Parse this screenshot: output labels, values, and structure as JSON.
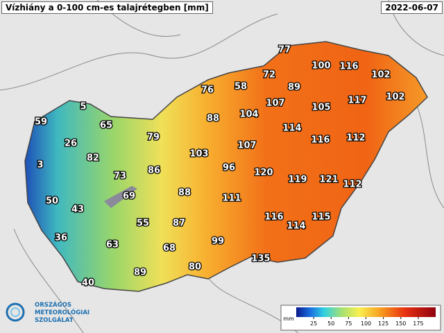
{
  "header": {
    "title": "Vízhiány a 0-100 cm-es talajrétegben [mm]",
    "date": "2022-06-07"
  },
  "stations": [
    77,
    100,
    116,
    102,
    72,
    89,
    76,
    58,
    102,
    117,
    105,
    107,
    104,
    88,
    5,
    65,
    59,
    79,
    114,
    116,
    112,
    26,
    103,
    107,
    82,
    3,
    96,
    73,
    86,
    120,
    119,
    121,
    112,
    88,
    69,
    111,
    50,
    43,
    116,
    115,
    114,
    87,
    55,
    36,
    99,
    63,
    68,
    135,
    80,
    89,
    40
  ],
  "legend": {
    "unit": "mm",
    "range": [
      0,
      200
    ],
    "ticks": [
      25,
      50,
      75,
      100,
      125,
      150,
      175
    ]
  },
  "logo": {
    "line1": "ORSZÁGOS",
    "line2": "METEOROLÓGIAI",
    "line3": "SZOLGÁLAT"
  }
}
